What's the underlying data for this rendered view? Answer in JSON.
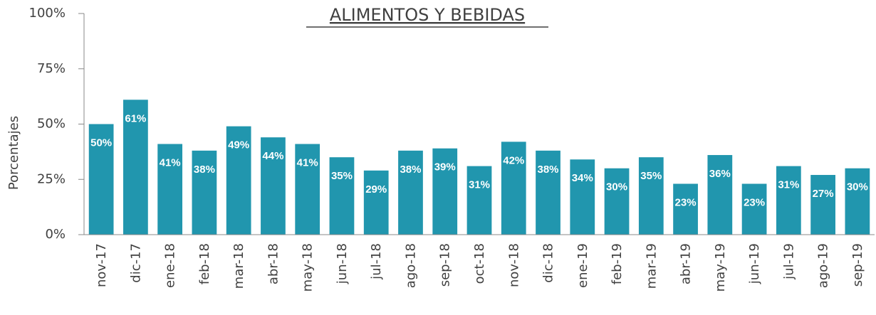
{
  "chart_data": {
    "type": "bar",
    "title": "ALIMENTOS Y BEBIDAS",
    "y_label": "Porcentajes",
    "categories": [
      "nov-17",
      "dic-17",
      "ene-18",
      "feb-18",
      "mar-18",
      "abr-18",
      "may-18",
      "jun-18",
      "jul-18",
      "ago-18",
      "sep-18",
      "oct-18",
      "nov-18",
      "dic-18",
      "ene-19",
      "feb-19",
      "mar-19",
      "abr-19",
      "may-19",
      "jun-19",
      "jul-19",
      "ago-19",
      "sep-19"
    ],
    "values": [
      50,
      61,
      41,
      38,
      49,
      44,
      41,
      35,
      29,
      38,
      39,
      31,
      42,
      38,
      34,
      30,
      35,
      23,
      36,
      23,
      31,
      27,
      30
    ],
    "value_labels": [
      "50%",
      "61%",
      "41%",
      "38%",
      "49%",
      "44%",
      "41%",
      "35%",
      "29%",
      "38%",
      "39%",
      "31%",
      "42%",
      "38%",
      "34%",
      "30%",
      "35%",
      "23%",
      "36%",
      "23%",
      "31%",
      "27%",
      "30%"
    ],
    "color": "#2196ae",
    "ylim": [
      0,
      100
    ],
    "yticks": [
      {
        "value": 0,
        "label": "0%"
      },
      {
        "value": 25,
        "label": "25%"
      },
      {
        "value": 50,
        "label": "50%"
      },
      {
        "value": 75,
        "label": "75%"
      },
      {
        "value": 100,
        "label": "100%"
      }
    ]
  }
}
